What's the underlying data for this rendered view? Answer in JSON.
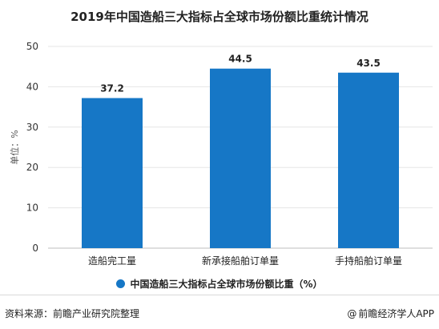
{
  "chart_data": {
    "type": "bar",
    "title": "2019年中国造船三大指标占全球市场份额比重统计情况",
    "ylabel": "单位：%",
    "xlabel": "",
    "categories": [
      "造船完工量",
      "新承接船舶订单量",
      "手持船舶订单量"
    ],
    "series": [
      {
        "name": "中国造船三大指标占全球市场份额比重（%）",
        "values": [
          37.2,
          44.5,
          43.5
        ]
      }
    ],
    "data_labels": [
      "37.2",
      "44.5",
      "43.5"
    ],
    "ylim": [
      0,
      50
    ],
    "yticks": [
      "0",
      "10",
      "20",
      "30",
      "40",
      "50"
    ],
    "grid": true,
    "legend_position": "bottom",
    "bar_color": "#1677c6"
  },
  "footer": {
    "source": "资料来源：前瞻产业研究院整理",
    "credit": "前瞻经济学人APP",
    "credit_icon": "at-icon"
  }
}
